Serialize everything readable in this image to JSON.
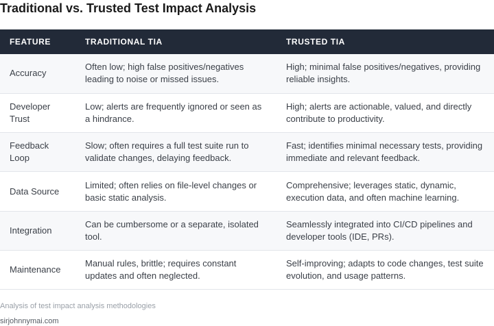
{
  "title": "Traditional vs. Trusted Test Impact Analysis",
  "table": {
    "headers": [
      "FEATURE",
      "TRADITIONAL TIA",
      "TRUSTED TIA"
    ],
    "rows": [
      {
        "feature": "Accuracy",
        "traditional": "Often low; high false positives/negatives leading to noise or missed issues.",
        "trusted": "High; minimal false positives/negatives, providing reliable insights."
      },
      {
        "feature": "Developer Trust",
        "traditional": "Low; alerts are frequently ignored or seen as a hindrance.",
        "trusted": "High; alerts are actionable, valued, and directly contribute to productivity."
      },
      {
        "feature": "Feedback Loop",
        "traditional": "Slow; often requires a full test suite run to validate changes, delaying feedback.",
        "trusted": "Fast; identifies minimal necessary tests, providing immediate and relevant feedback."
      },
      {
        "feature": "Data Source",
        "traditional": "Limited; often relies on file-level changes or basic static analysis.",
        "trusted": "Comprehensive; leverages static, dynamic, execution data, and often machine learning."
      },
      {
        "feature": "Integration",
        "traditional": "Can be cumbersome or a separate, isolated tool.",
        "trusted": "Seamlessly integrated into CI/CD pipelines and developer tools (IDE, PRs)."
      },
      {
        "feature": "Maintenance",
        "traditional": "Manual rules, brittle; requires constant updates and often neglected.",
        "trusted": "Self-improving; adapts to code changes, test suite evolution, and usage patterns."
      }
    ]
  },
  "caption": "Analysis of test impact analysis methodologies",
  "source": "sirjohnnymai.com",
  "colors": {
    "header_background": "#222a38",
    "header_text": "#ffffff",
    "row_alt_background": "#f7f8fa",
    "border": "#e2e5ea"
  }
}
